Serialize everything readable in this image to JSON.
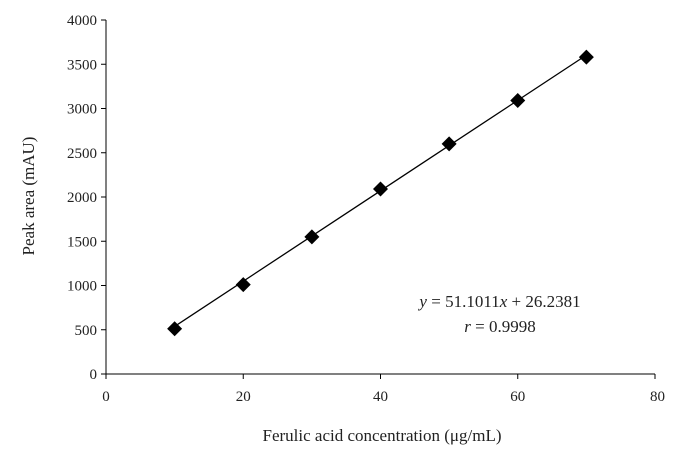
{
  "chart_data": {
    "type": "scatter",
    "title": "",
    "xlabel": "Ferulic acid concentration (μg/mL)",
    "ylabel": "Peak area (mAU)",
    "xlim": [
      0,
      80
    ],
    "ylim": [
      0,
      4000
    ],
    "x_ticks": [
      "0",
      "20",
      "40",
      "60",
      "80"
    ],
    "y_ticks": [
      "0",
      "500",
      "1000",
      "1500",
      "2000",
      "2500",
      "3000",
      "3500",
      "4000"
    ],
    "grid": false,
    "legend": "none",
    "marker": "diamond",
    "marker_color": "#000000",
    "series": [
      {
        "x": [
          10,
          20,
          30,
          40,
          50,
          60,
          70
        ],
        "y": [
          512,
          1010,
          1550,
          2090,
          2600,
          3090,
          3580
        ]
      }
    ],
    "trendline": {
      "slope": 51.1011,
      "intercept": 26.2381,
      "x_range": [
        10,
        70
      ]
    },
    "annotations": {
      "equation": "y = 51.1011x + 26.2381",
      "r_value": "r = 0.9998"
    }
  }
}
